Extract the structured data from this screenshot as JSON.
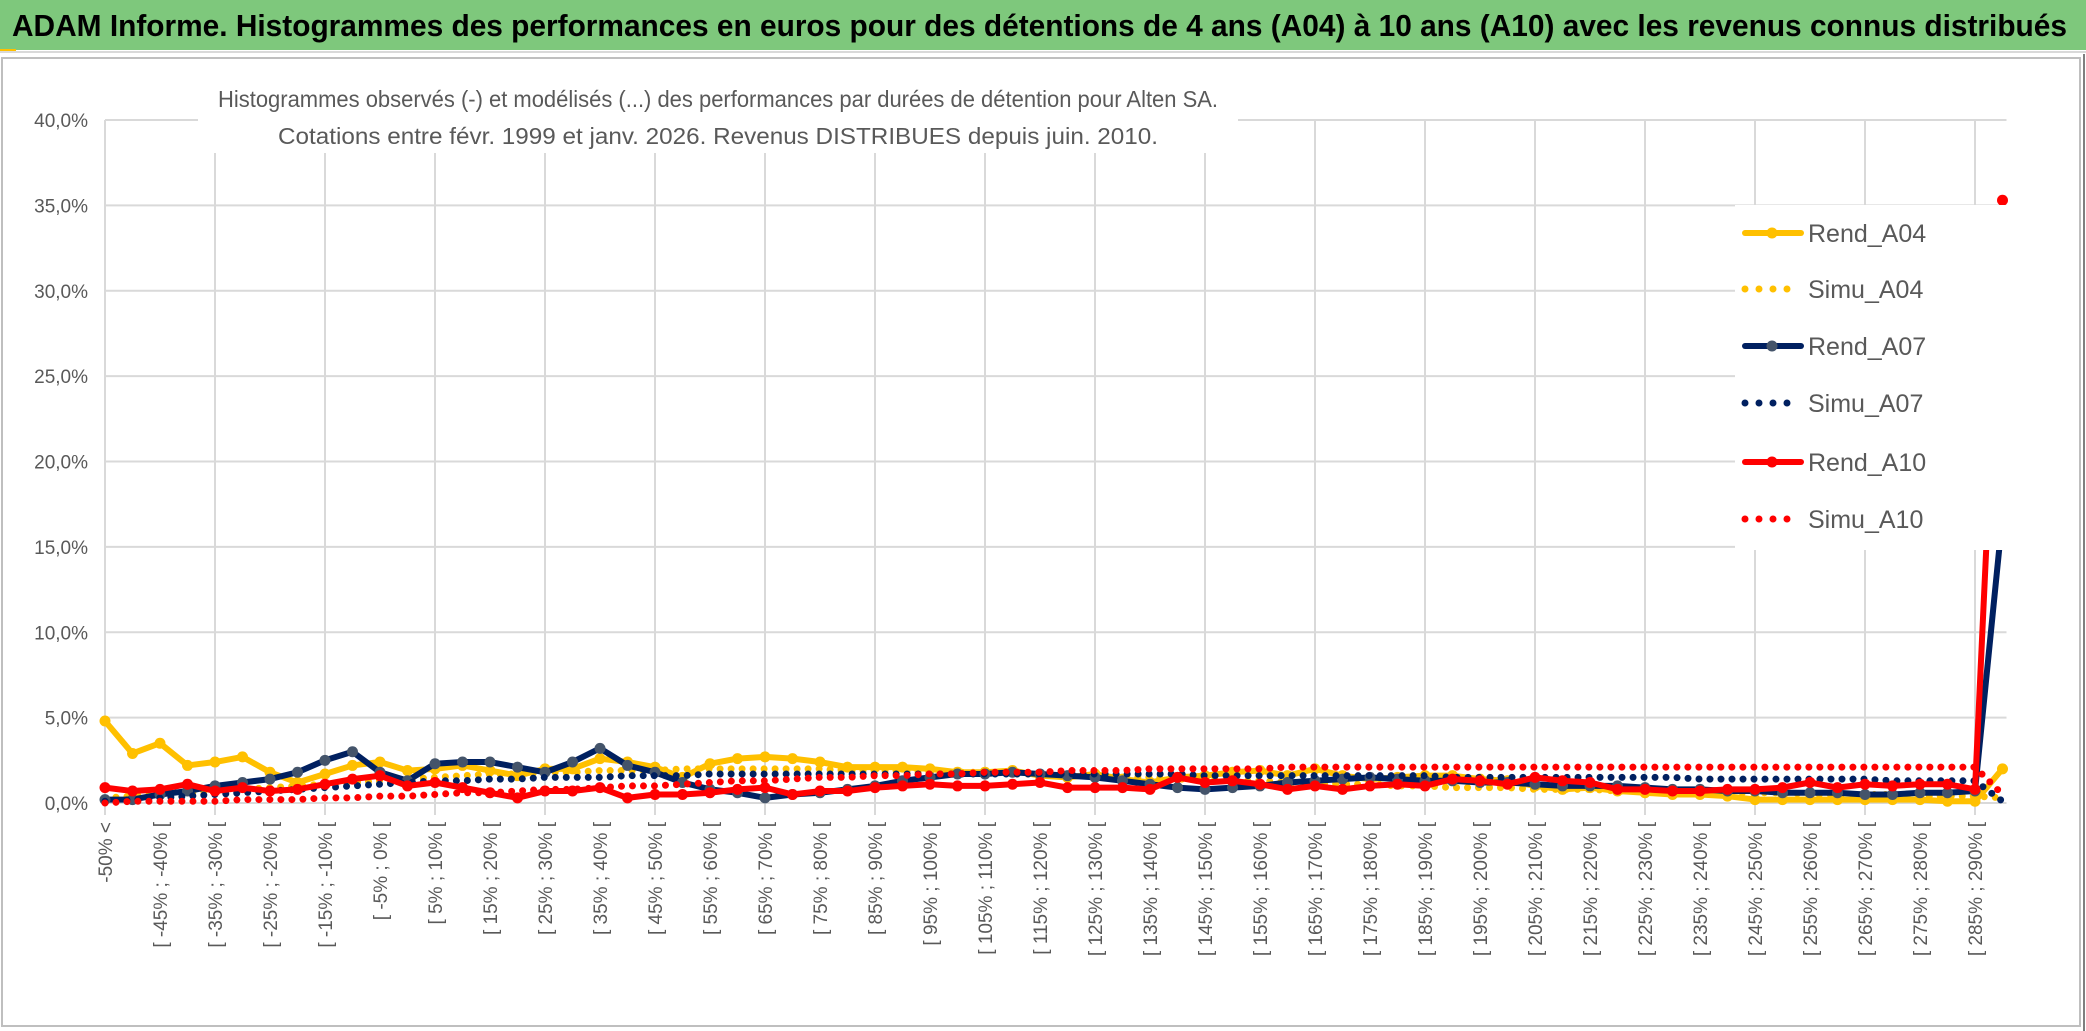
{
  "header": {
    "title": "ADAM Informe. Histogrammes des performances en euros pour des détentions de 4 ans (A04) à 10 ans (A10) avec les revenus connus distribués"
  },
  "colors": {
    "header_bg": "#7ec87c",
    "A04": "#ffc000",
    "A07": "#002060",
    "A07_marker": "#44546a",
    "A10": "#ff0000",
    "grid": "#d9d9d9",
    "text": "#595959"
  },
  "chart_data": {
    "type": "line",
    "title": [
      "Histogrammes observés (-) et modélisés (...) des performances par durées de détention pour Alten SA.",
      "Cotations entre févr. 1999 et janv. 2026. Revenus DISTRIBUES depuis juin. 2010."
    ],
    "ylim": [
      0,
      40
    ],
    "yticks": [
      "0,0%",
      "5,0%",
      "10,0%",
      "15,0%",
      "20,0%",
      "25,0%",
      "30,0%",
      "35,0%",
      "40,0%"
    ],
    "grid": true,
    "legend_position": "right",
    "categories": [
      "-50% <",
      "",
      "[ -45% ; -40% [",
      "",
      "[ -35% ; -30% [",
      "",
      "[ -25% ; -20% [",
      "",
      "[ -15% ; -10% [",
      "",
      "[ -5% ; 0% [",
      "",
      "[ 5% ; 10% [",
      "",
      "[ 15% ; 20% [",
      "",
      "[ 25% ; 30% [",
      "",
      "[ 35% ; 40% [",
      "",
      "[ 45% ; 50% [",
      "",
      "[ 55% ; 60% [",
      "",
      "[ 65% ; 70% [",
      "",
      "[ 75% ; 80% [",
      "",
      "[ 85% ; 90% [",
      "",
      "[ 95% ; 100% [",
      "",
      "[ 105% ; 110% [",
      "",
      "[ 115% ; 120% [",
      "",
      "[ 125% ; 130% [",
      "",
      "[ 135% ; 140% [",
      "",
      "[ 145% ; 150% [",
      "",
      "[ 155% ; 160% [",
      "",
      "[ 165% ; 170% [",
      "",
      "[ 175% ; 180% [",
      "",
      "[ 185% ; 190% [",
      "",
      "[ 195% ; 200% [",
      "",
      "[ 205% ; 210% [",
      "",
      "[ 215% ; 220% [",
      "",
      "[ 225% ; 230% [",
      "",
      "[ 235% ; 240% [",
      "",
      "[ 245% ; 250% [",
      "",
      "[ 255% ; 260% [",
      "",
      "[ 265% ; 270% [",
      "",
      "[ 275% ; 280% [",
      "",
      "[ 285% ; 290% [",
      ""
    ],
    "series": [
      {
        "name": "Rend_A04",
        "style": "solid",
        "color": "#ffc000",
        "marker": "#ffc000",
        "values": [
          4.8,
          2.9,
          3.5,
          2.2,
          2.4,
          2.7,
          1.8,
          1.2,
          1.7,
          2.2,
          2.4,
          1.9,
          2.0,
          2.2,
          1.9,
          1.6,
          2.0,
          2.0,
          2.6,
          2.4,
          2.1,
          1.5,
          2.3,
          2.6,
          2.7,
          2.6,
          2.4,
          2.1,
          2.1,
          2.1,
          2.0,
          1.8,
          1.8,
          1.9,
          1.6,
          1.5,
          1.7,
          1.4,
          1.2,
          1.5,
          1.6,
          1.8,
          1.9,
          1.6,
          2.0,
          1.6,
          1.4,
          1.5,
          1.6,
          1.6,
          1.4,
          1.3,
          1.0,
          0.8,
          0.9,
          0.7,
          0.6,
          0.5,
          0.5,
          0.4,
          0.2,
          0.2,
          0.2,
          0.2,
          0.2,
          0.2,
          0.2,
          0.1,
          0.1,
          2.0
        ]
      },
      {
        "name": "Simu_A04",
        "style": "dotted",
        "color": "#ffc000",
        "values": [
          0.3,
          0.4,
          0.5,
          0.6,
          0.7,
          0.8,
          0.9,
          1.0,
          1.1,
          1.2,
          1.3,
          1.4,
          1.5,
          1.6,
          1.7,
          1.7,
          1.8,
          1.8,
          1.9,
          1.9,
          1.9,
          2.0,
          2.0,
          2.0,
          2.0,
          2.0,
          2.0,
          1.9,
          1.9,
          1.9,
          1.8,
          1.8,
          1.8,
          1.7,
          1.7,
          1.6,
          1.6,
          1.5,
          1.5,
          1.4,
          1.4,
          1.3,
          1.3,
          1.2,
          1.2,
          1.1,
          1.1,
          1.0,
          1.0,
          0.9,
          0.9,
          0.9,
          0.8,
          0.8,
          0.8,
          0.7,
          0.7,
          0.7,
          0.6,
          0.6,
          0.6,
          0.6,
          0.5,
          0.5,
          0.5,
          0.5,
          0.4,
          0.4,
          0.4,
          0.3
        ]
      },
      {
        "name": "Rend_A07",
        "style": "solid",
        "color": "#002060",
        "marker": "#44546a",
        "values": [
          0.2,
          0.2,
          0.5,
          0.7,
          1.0,
          1.2,
          1.4,
          1.8,
          2.5,
          3.0,
          1.8,
          1.3,
          2.3,
          2.4,
          2.4,
          2.1,
          1.8,
          2.4,
          3.2,
          2.2,
          1.8,
          1.2,
          0.8,
          0.6,
          0.3,
          0.5,
          0.6,
          0.8,
          1.0,
          1.3,
          1.5,
          1.7,
          1.7,
          1.8,
          1.7,
          1.6,
          1.5,
          1.3,
          1.1,
          0.9,
          0.8,
          0.9,
          1.0,
          1.2,
          1.3,
          1.4,
          1.5,
          1.4,
          1.3,
          1.3,
          1.2,
          1.2,
          1.1,
          1.0,
          1.0,
          1.0,
          0.9,
          0.8,
          0.8,
          0.7,
          0.7,
          0.6,
          0.6,
          0.6,
          0.5,
          0.5,
          0.6,
          0.6,
          0.7,
          16.8
        ]
      },
      {
        "name": "Simu_A07",
        "style": "dotted",
        "color": "#002060",
        "values": [
          0.1,
          0.2,
          0.3,
          0.4,
          0.5,
          0.6,
          0.7,
          0.8,
          0.9,
          1.0,
          1.1,
          1.2,
          1.3,
          1.3,
          1.4,
          1.4,
          1.5,
          1.5,
          1.5,
          1.6,
          1.6,
          1.6,
          1.7,
          1.7,
          1.7,
          1.7,
          1.7,
          1.7,
          1.7,
          1.7,
          1.7,
          1.7,
          1.7,
          1.7,
          1.7,
          1.7,
          1.7,
          1.7,
          1.7,
          1.7,
          1.6,
          1.6,
          1.6,
          1.6,
          1.6,
          1.6,
          1.6,
          1.6,
          1.6,
          1.5,
          1.5,
          1.5,
          1.5,
          1.5,
          1.5,
          1.5,
          1.5,
          1.5,
          1.4,
          1.4,
          1.4,
          1.4,
          1.4,
          1.4,
          1.4,
          1.3,
          1.3,
          1.3,
          1.3,
          0.1
        ]
      },
      {
        "name": "Rend_A10",
        "style": "solid",
        "color": "#ff0000",
        "marker": "#ff0000",
        "values": [
          0.9,
          0.7,
          0.8,
          1.1,
          0.7,
          0.9,
          0.7,
          0.8,
          1.1,
          1.4,
          1.6,
          1.0,
          1.2,
          0.9,
          0.6,
          0.3,
          0.7,
          0.7,
          0.9,
          0.3,
          0.5,
          0.5,
          0.6,
          0.8,
          0.9,
          0.5,
          0.7,
          0.7,
          0.9,
          1.0,
          1.1,
          1.0,
          1.0,
          1.1,
          1.2,
          0.9,
          0.9,
          0.9,
          0.8,
          1.5,
          1.2,
          1.3,
          1.1,
          0.8,
          1.0,
          0.8,
          1.0,
          1.1,
          1.0,
          1.4,
          1.3,
          1.1,
          1.5,
          1.3,
          1.2,
          0.8,
          0.8,
          0.7,
          0.7,
          0.8,
          0.8,
          0.9,
          1.2,
          0.9,
          1.1,
          1.0,
          1.1,
          1.1,
          0.8,
          35.3
        ]
      },
      {
        "name": "Simu_A10",
        "style": "dotted",
        "color": "#ff0000",
        "values": [
          0.0,
          0.1,
          0.1,
          0.1,
          0.1,
          0.2,
          0.2,
          0.2,
          0.3,
          0.3,
          0.4,
          0.4,
          0.5,
          0.6,
          0.6,
          0.7,
          0.8,
          0.8,
          0.9,
          1.0,
          1.0,
          1.1,
          1.2,
          1.3,
          1.3,
          1.4,
          1.5,
          1.5,
          1.6,
          1.6,
          1.7,
          1.7,
          1.8,
          1.8,
          1.8,
          1.9,
          1.9,
          1.9,
          2.0,
          2.0,
          2.0,
          2.0,
          2.0,
          2.1,
          2.1,
          2.1,
          2.1,
          2.1,
          2.1,
          2.1,
          2.1,
          2.1,
          2.1,
          2.1,
          2.1,
          2.1,
          2.1,
          2.1,
          2.1,
          2.1,
          2.1,
          2.1,
          2.1,
          2.1,
          2.1,
          2.1,
          2.1,
          2.1,
          2.1,
          0.5
        ]
      }
    ]
  }
}
